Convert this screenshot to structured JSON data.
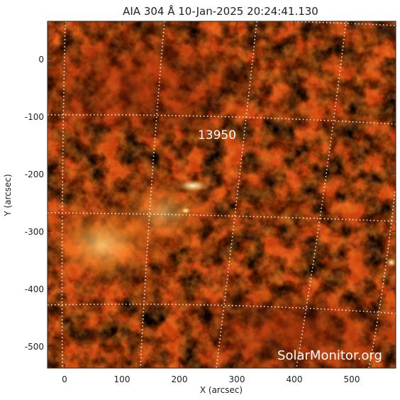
{
  "title": "AIA 304 Å 10-Jan-2025 20:24:41.130",
  "x_axis": {
    "label": "X (arcsec)",
    "ticks": [
      "0",
      "100",
      "200",
      "300",
      "400",
      "500"
    ]
  },
  "y_axis": {
    "label": "Y (arcsec)",
    "ticks": [
      "0",
      "-100",
      "-200",
      "-300",
      "-400",
      "-500"
    ]
  },
  "active_region": {
    "number": "13950"
  },
  "watermark": "SolarMonitor.org",
  "colors": {
    "background": "#000000",
    "bright_plasma": "#ffd27a",
    "mid_plasma": "#c8400a",
    "dim_plasma": "#5a0e00",
    "grid": "#ffffff"
  }
}
